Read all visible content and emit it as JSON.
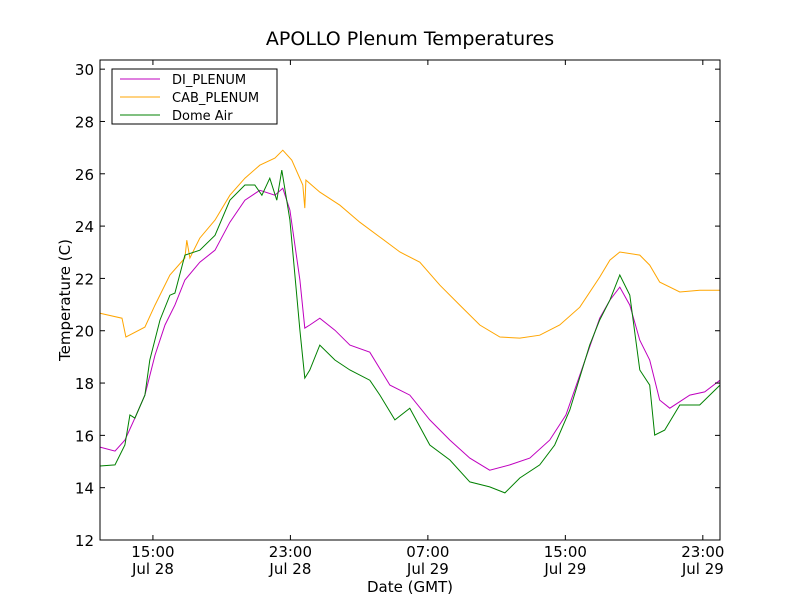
{
  "chart_data": {
    "type": "line",
    "title": "APOLLO Plenum Temperatures",
    "xlabel": "Date (GMT)",
    "ylabel": "Temperature (C)",
    "x_units": "hours since Jul 28 00:00 GMT",
    "xlim": [
      11.92,
      48.0
    ],
    "ylim": [
      12,
      30.35
    ],
    "yticks": [
      12,
      14,
      16,
      18,
      20,
      22,
      24,
      26,
      28,
      30
    ],
    "xticks": [
      {
        "value": 15,
        "line1": "15:00",
        "line2": "Jul 28"
      },
      {
        "value": 23,
        "line1": "23:00",
        "line2": "Jul 28"
      },
      {
        "value": 31,
        "line1": "07:00",
        "line2": "Jul 29"
      },
      {
        "value": 39,
        "line1": "15:00",
        "line2": "Jul 29"
      },
      {
        "value": 47,
        "line1": "23:00",
        "line2": "Jul 29"
      }
    ],
    "grid": false,
    "legend_position": "top-left",
    "series": [
      {
        "name": "DI_PLENUM",
        "color": "#bf00bf",
        "x": [
          11.92,
          12.79,
          13.37,
          13.95,
          14.53,
          15.12,
          15.7,
          16.28,
          16.86,
          17.73,
          18.61,
          19.48,
          20.35,
          21.22,
          22.1,
          22.56,
          22.97,
          23.55,
          23.84,
          24.13,
          24.71,
          25.59,
          26.46,
          27.62,
          28.79,
          29.95,
          31.11,
          32.28,
          33.44,
          34.6,
          35.77,
          36.93,
          38.09,
          39.03,
          39.84,
          41.0,
          41.59,
          42.17,
          42.75,
          43.33,
          43.91,
          44.49,
          45.08,
          46.24,
          47.11,
          48.0
        ],
        "y": [
          15.55,
          15.4,
          15.82,
          16.66,
          17.54,
          19.07,
          20.22,
          20.98,
          21.94,
          22.62,
          23.08,
          24.15,
          24.99,
          25.37,
          25.18,
          25.45,
          24.61,
          21.94,
          20.1,
          20.22,
          20.48,
          20.02,
          19.45,
          19.18,
          17.92,
          17.54,
          16.59,
          15.82,
          15.13,
          14.67,
          14.87,
          15.13,
          15.82,
          16.78,
          18.3,
          20.48,
          21.17,
          21.67,
          20.98,
          19.64,
          18.88,
          17.35,
          17.04,
          17.54,
          17.66,
          18.11
        ]
      },
      {
        "name": "CAB_PLENUM",
        "color": "#ffa500",
        "x": [
          11.92,
          13.2,
          13.43,
          14.53,
          15.12,
          15.99,
          16.86,
          16.97,
          17.15,
          17.73,
          18.61,
          19.48,
          20.35,
          21.22,
          22.1,
          22.56,
          23.08,
          23.72,
          23.84,
          23.9,
          24.71,
          25.88,
          27.04,
          28.21,
          29.37,
          30.53,
          31.7,
          32.86,
          34.02,
          35.19,
          36.35,
          37.51,
          38.67,
          39.84,
          41.0,
          41.59,
          42.17,
          43.33,
          43.91,
          44.49,
          45.66,
          46.82,
          48.0
        ],
        "y": [
          20.67,
          20.48,
          19.76,
          20.14,
          20.98,
          22.13,
          22.78,
          23.46,
          22.78,
          23.54,
          24.23,
          25.18,
          25.83,
          26.33,
          26.6,
          26.9,
          26.52,
          25.57,
          24.69,
          25.76,
          25.3,
          24.8,
          24.15,
          23.58,
          23.01,
          22.62,
          21.74,
          20.98,
          20.22,
          19.76,
          19.72,
          19.83,
          20.22,
          20.9,
          22.05,
          22.7,
          23.01,
          22.89,
          22.51,
          21.86,
          21.48,
          21.55,
          21.55
        ]
      },
      {
        "name": "Dome Air",
        "color": "#008000",
        "x": [
          11.92,
          12.79,
          13.37,
          13.66,
          13.95,
          14.53,
          14.82,
          15.41,
          15.99,
          16.28,
          16.86,
          17.73,
          18.61,
          19.48,
          20.35,
          20.93,
          21.34,
          21.8,
          22.21,
          22.5,
          22.97,
          23.55,
          23.84,
          24.13,
          24.71,
          25.59,
          26.46,
          27.62,
          28.21,
          29.08,
          29.95,
          31.11,
          32.28,
          33.44,
          34.6,
          35.48,
          36.35,
          37.51,
          38.38,
          39.26,
          40.42,
          41.0,
          41.59,
          42.17,
          42.75,
          43.33,
          43.91,
          44.2,
          44.78,
          45.66,
          46.82,
          48.0
        ],
        "y": [
          14.83,
          14.87,
          15.63,
          16.78,
          16.66,
          17.54,
          18.88,
          20.41,
          21.36,
          21.44,
          22.89,
          23.08,
          23.65,
          24.99,
          25.57,
          25.57,
          25.18,
          25.83,
          24.99,
          26.14,
          24.23,
          20.02,
          18.19,
          18.5,
          19.45,
          18.88,
          18.5,
          18.11,
          17.54,
          16.59,
          17.04,
          15.63,
          15.06,
          14.22,
          14.03,
          13.8,
          14.37,
          14.87,
          15.63,
          16.97,
          19.45,
          20.41,
          21.17,
          22.13,
          21.36,
          18.5,
          17.92,
          16.01,
          16.2,
          17.16,
          17.16,
          17.92
        ]
      }
    ]
  }
}
